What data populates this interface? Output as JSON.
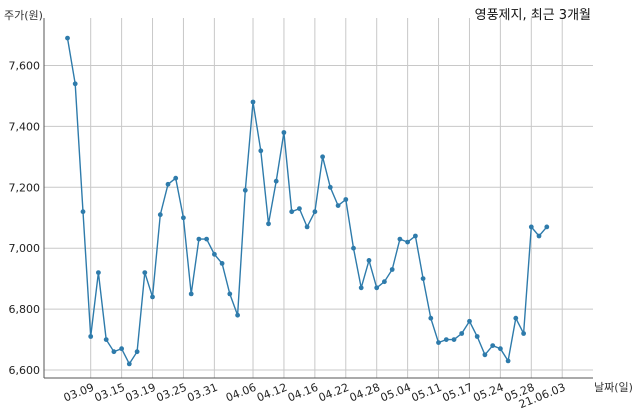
{
  "chart_data": {
    "type": "line",
    "title": "영풍제지, 최근 3개월",
    "ylabel": "주가(원)",
    "xlabel": "날짜(일)",
    "ylim": [
      6600,
      7700
    ],
    "yticks": [
      6600,
      6800,
      7000,
      7200,
      7400,
      7600
    ],
    "ytick_labels": [
      "6,600",
      "6,800",
      "7,000",
      "7,200",
      "7,400",
      "7,600"
    ],
    "xtick_labels": [
      "03.09",
      "03.15",
      "03.19",
      "03.25",
      "03.31",
      "04.06",
      "04.12",
      "04.16",
      "04.22",
      "04.28",
      "05.04",
      "05.11",
      "05.17",
      "05.24",
      "05.28",
      "21.06.03"
    ],
    "xtick_index": [
      3,
      7,
      11,
      15,
      19,
      24,
      28,
      32,
      36,
      40,
      44,
      48,
      52,
      56,
      60,
      64
    ],
    "grid": true,
    "color": "#2e7bab",
    "series": [
      {
        "name": "",
        "values": [
          7690,
          7540,
          7120,
          6710,
          6920,
          6700,
          6660,
          6670,
          6620,
          6660,
          6920,
          6840,
          7110,
          7210,
          7230,
          7100,
          6850,
          7030,
          7030,
          6980,
          6950,
          6850,
          6780,
          7190,
          7480,
          7320,
          7080,
          7220,
          7380,
          7120,
          7130,
          7070,
          7120,
          7300,
          7200,
          7140,
          7160,
          7000,
          6870,
          6960,
          6870,
          6890,
          6930,
          7030,
          7020,
          7040,
          6900,
          6770,
          6690,
          6700,
          6700,
          6720,
          6760,
          6710,
          6650,
          6680,
          6670,
          6630,
          6770,
          6720,
          7070,
          7040,
          7070
        ]
      }
    ]
  }
}
